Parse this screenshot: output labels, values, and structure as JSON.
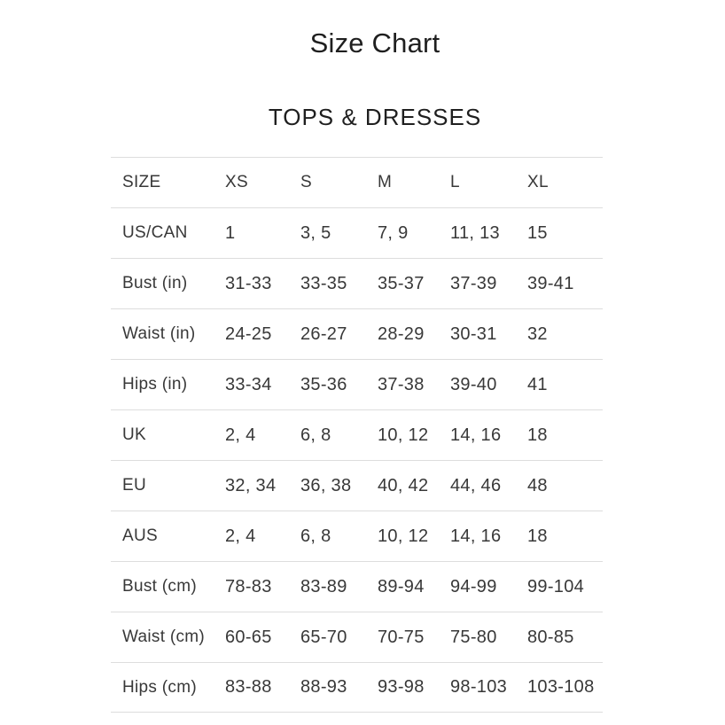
{
  "page": {
    "title": "Size Chart",
    "section_title": "TOPS & DRESSES"
  },
  "colors": {
    "background": "#ffffff",
    "text": "#383838",
    "heading_text": "#1f1f1f",
    "divider": "#dddddd"
  },
  "size_table": {
    "columns": [
      "SIZE",
      "XS",
      "S",
      "M",
      "L",
      "XL"
    ],
    "rows": [
      {
        "label": "US/CAN",
        "values": [
          "1",
          "3, 5",
          "7, 9",
          "11, 13",
          "15"
        ]
      },
      {
        "label": "Bust (in)",
        "values": [
          "31-33",
          "33-35",
          "35-37",
          "37-39",
          "39-41"
        ]
      },
      {
        "label": "Waist (in)",
        "values": [
          "24-25",
          "26-27",
          "28-29",
          "30-31",
          "32"
        ]
      },
      {
        "label": "Hips (in)",
        "values": [
          "33-34",
          "35-36",
          "37-38",
          "39-40",
          "41"
        ]
      },
      {
        "label": "UK",
        "values": [
          "2, 4",
          "6, 8",
          "10, 12",
          "14, 16",
          "18"
        ]
      },
      {
        "label": "EU",
        "values": [
          "32, 34",
          "36, 38",
          "40, 42",
          "44, 46",
          "48"
        ]
      },
      {
        "label": "AUS",
        "values": [
          "2, 4",
          "6, 8",
          "10, 12",
          "14, 16",
          "18"
        ]
      },
      {
        "label": "Bust (cm)",
        "values": [
          "78-83",
          "83-89",
          "89-94",
          "94-99",
          "99-104"
        ]
      },
      {
        "label": "Waist (cm)",
        "values": [
          "60-65",
          "65-70",
          "70-75",
          "75-80",
          "80-85"
        ]
      },
      {
        "label": "Hips (cm)",
        "values": [
          "83-88",
          "88-93",
          "93-98",
          "98-103",
          "103-108"
        ]
      }
    ]
  }
}
